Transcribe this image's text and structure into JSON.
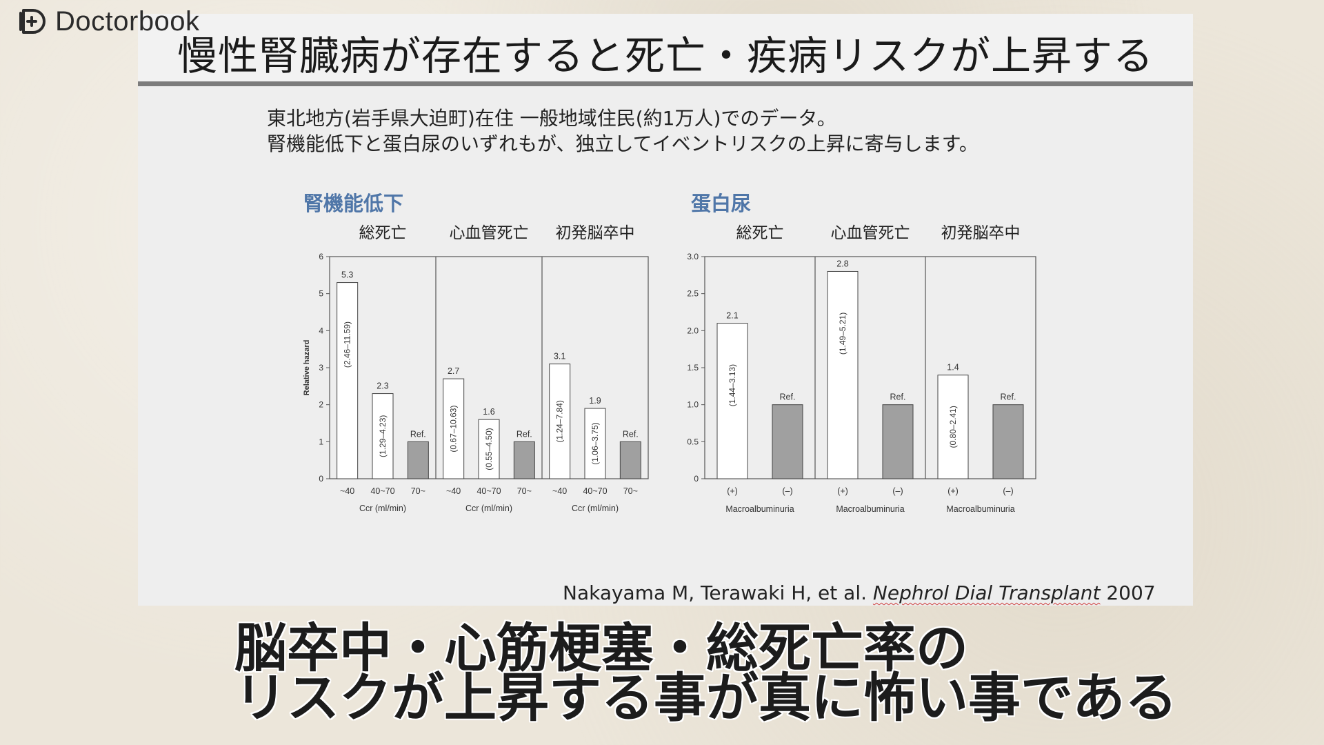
{
  "brand": {
    "name": "Doctorbook"
  },
  "slide": {
    "title": "慢性腎臓病が存在すると死亡・疾病リスクが上昇する",
    "intro": [
      "東北地方(岩手県大迫町)在住 一般地域住民(約1万人)でのデータ。",
      "腎機能低下と蛋白尿のいずれもが、独立してイベントリスクの上昇に寄与します。"
    ],
    "citation": {
      "authors": "Nakayama M, Terawaki H, et al. ",
      "journal": "Nephrol Dial Transplant",
      "year": " 2007"
    }
  },
  "captions": [
    "脳卒中・心筋梗塞・総死亡率の",
    "リスクが上昇する事が真に怖い事である"
  ],
  "colors": {
    "panel_title": "#4f76a8",
    "ref_bar": "#a0a0a0",
    "open_bar": "#ffffff",
    "axis": "#555555"
  },
  "chart_data": [
    {
      "type": "bar",
      "title": "腎機能低下",
      "ylabel": "Relative hazard",
      "ylim": [
        0,
        6
      ],
      "yticks": [
        "0",
        "1",
        "2",
        "3",
        "4",
        "5",
        "6"
      ],
      "ytick_values": [
        0,
        1,
        2,
        3,
        4,
        5,
        6
      ],
      "panels": [
        {
          "name": "総死亡",
          "xlabel": "Ccr (ml/min)",
          "categories": [
            "~40",
            "40~70",
            "70~"
          ],
          "values": [
            5.3,
            2.3,
            1.0
          ],
          "value_labels": [
            "5.3",
            "2.3",
            "Ref."
          ],
          "ci_labels": [
            "(2.46–11.59)",
            "(1.29–4.23)",
            ""
          ],
          "reference": [
            false,
            false,
            true
          ]
        },
        {
          "name": "心血管死亡",
          "xlabel": "Ccr (ml/min)",
          "categories": [
            "~40",
            "40~70",
            "70~"
          ],
          "values": [
            2.7,
            1.6,
            1.0
          ],
          "value_labels": [
            "2.7",
            "1.6",
            "Ref."
          ],
          "ci_labels": [
            "(0.67–10.63)",
            "(0.55–4.50)",
            ""
          ],
          "reference": [
            false,
            false,
            true
          ]
        },
        {
          "name": "初発脳卒中",
          "xlabel": "Ccr (ml/min)",
          "categories": [
            "~40",
            "40~70",
            "70~"
          ],
          "values": [
            3.1,
            1.9,
            1.0
          ],
          "value_labels": [
            "3.1",
            "1.9",
            "Ref."
          ],
          "ci_labels": [
            "(1.24–7.84)",
            "(1.06–3.75)",
            ""
          ],
          "reference": [
            false,
            false,
            true
          ]
        }
      ]
    },
    {
      "type": "bar",
      "title": "蛋白尿",
      "ylabel": "",
      "ylim": [
        0,
        3.0
      ],
      "yticks": [
        "0",
        "0.5",
        "1.0",
        "1.5",
        "2.0",
        "2.5",
        "3.0"
      ],
      "ytick_values": [
        0,
        0.5,
        1.0,
        1.5,
        2.0,
        2.5,
        3.0
      ],
      "panels": [
        {
          "name": "総死亡",
          "xlabel": "Macroalbuminuria",
          "categories": [
            "(+)",
            "(–)"
          ],
          "values": [
            2.1,
            1.0
          ],
          "value_labels": [
            "2.1",
            "Ref."
          ],
          "ci_labels": [
            "(1.44–3.13)",
            ""
          ],
          "reference": [
            false,
            true
          ]
        },
        {
          "name": "心血管死亡",
          "xlabel": "Macroalbuminuria",
          "categories": [
            "(+)",
            "(–)"
          ],
          "values": [
            2.8,
            1.0
          ],
          "value_labels": [
            "2.8",
            "Ref."
          ],
          "ci_labels": [
            "(1.49–5.21)",
            ""
          ],
          "reference": [
            false,
            true
          ]
        },
        {
          "name": "初発脳卒中",
          "xlabel": "Macroalbuminuria",
          "categories": [
            "(+)",
            "(–)"
          ],
          "values": [
            1.4,
            1.0
          ],
          "value_labels": [
            "1.4",
            "Ref."
          ],
          "ci_labels": [
            "(0.80–2.41)",
            ""
          ],
          "reference": [
            false,
            true
          ]
        }
      ]
    }
  ]
}
